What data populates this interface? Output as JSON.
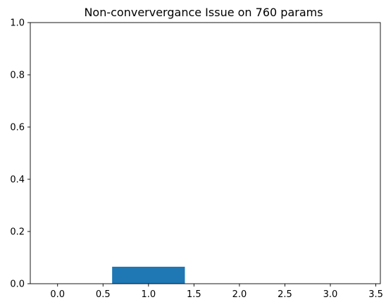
{
  "chart_data": {
    "type": "bar",
    "title": "Non-conververgance Issue  on 760 params",
    "xlabel": "",
    "ylabel": "",
    "x": [
      0,
      1,
      2,
      3
    ],
    "values": [
      0,
      0.065,
      0,
      0
    ],
    "bar_width": 0.8,
    "bar_color": "#1f77b4",
    "xlim": [
      -0.3,
      3.55
    ],
    "ylim": [
      0,
      1
    ],
    "xticks": [
      0.0,
      0.5,
      1.0,
      1.5,
      2.0,
      2.5,
      3.0,
      3.5
    ],
    "xtick_labels": [
      "0.0",
      "0.5",
      "1.0",
      "1.5",
      "2.0",
      "2.5",
      "3.0",
      "3.5"
    ],
    "yticks": [
      0.0,
      0.2,
      0.4,
      0.6,
      0.8,
      1.0
    ],
    "ytick_labels": [
      "0.0",
      "0.2",
      "0.4",
      "0.6",
      "0.8",
      "1.0"
    ],
    "grid": false,
    "legend": "none"
  }
}
